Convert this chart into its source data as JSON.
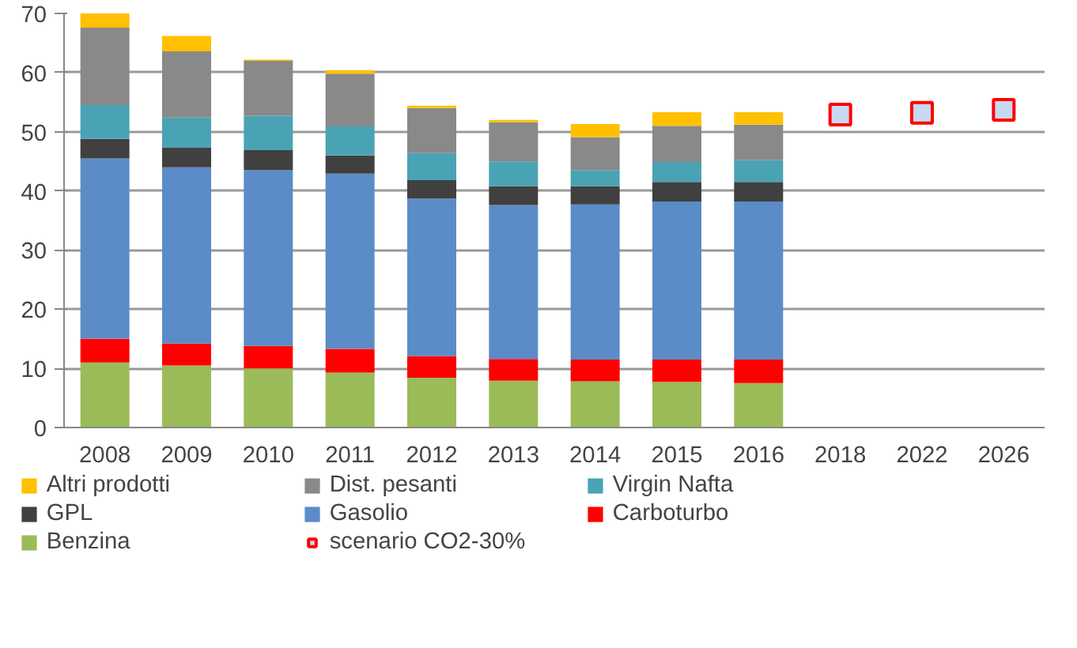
{
  "chart_data": {
    "type": "bar",
    "stacked": true,
    "categories": [
      "2008",
      "2009",
      "2010",
      "2011",
      "2012",
      "2013",
      "2014",
      "2015",
      "2016",
      "2018",
      "2022",
      "2026"
    ],
    "ylim": [
      0,
      70
    ],
    "yticks": [
      0,
      10,
      20,
      30,
      40,
      50,
      60,
      70
    ],
    "grid": "y",
    "legend": "bottom",
    "series": [
      {
        "name": "Benzina",
        "color": "#9bbb59",
        "values": [
          11,
          10.5,
          10,
          9.3,
          8.4,
          7.9,
          7.8,
          7.7,
          7.5,
          null,
          null,
          null
        ]
      },
      {
        "name": "Carboturbo",
        "color": "#ff0000",
        "values": [
          4,
          3.7,
          3.8,
          4,
          3.7,
          3.7,
          3.7,
          3.8,
          4,
          null,
          null,
          null
        ]
      },
      {
        "name": "Gasolio",
        "color": "#5b8cc8",
        "values": [
          30.5,
          29.8,
          29.7,
          29.6,
          26.6,
          26,
          26.2,
          26.7,
          26.7,
          null,
          null,
          null
        ]
      },
      {
        "name": "GPL",
        "color": "#404040",
        "values": [
          3.3,
          3.3,
          3.4,
          3.1,
          3.1,
          3.2,
          3.1,
          3.3,
          3.3,
          null,
          null,
          null
        ]
      },
      {
        "name": "Virgin Nafta",
        "color": "#4aa3b5",
        "values": [
          5.7,
          5.1,
          5.8,
          4.9,
          4.6,
          4.2,
          2.7,
          3.4,
          3.7,
          null,
          null,
          null
        ]
      },
      {
        "name": "Dist. pesanti",
        "color": "#898989",
        "values": [
          13.1,
          11.2,
          9.3,
          8.9,
          7.6,
          6.6,
          5.6,
          6.1,
          6,
          null,
          null,
          null
        ]
      },
      {
        "name": "Altri prodotti",
        "color": "#ffc000",
        "values": [
          2.4,
          2.6,
          0.2,
          0.6,
          0.4,
          0.4,
          2.2,
          2.3,
          2.1,
          null,
          null,
          null
        ]
      },
      {
        "name": "scenario CO2-30%",
        "type": "scatter",
        "marker": "square",
        "color": "#c6d9f1",
        "values": [
          null,
          null,
          null,
          null,
          null,
          null,
          null,
          null,
          null,
          52.9,
          53.2,
          53.7
        ]
      }
    ]
  }
}
